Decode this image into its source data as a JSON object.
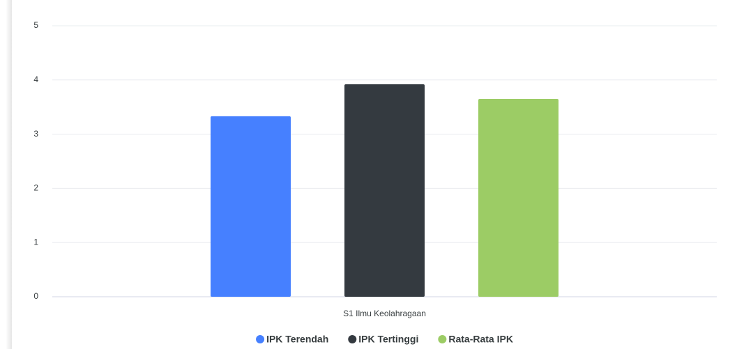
{
  "chart_data": {
    "type": "bar",
    "categories": [
      "S1 Ilmu Keolahragaan"
    ],
    "series": [
      {
        "name": "IPK Terendah",
        "color": "#4680ff",
        "values": [
          3.33
        ]
      },
      {
        "name": "IPK Tertinggi",
        "color": "#343a40",
        "values": [
          3.92
        ]
      },
      {
        "name": "Rata-Rata IPK",
        "color": "#9ccc65",
        "values": [
          3.65
        ]
      }
    ],
    "ylim": [
      0,
      5
    ],
    "yticks": [
      0,
      1,
      2,
      3,
      4,
      5
    ],
    "grid": true,
    "legend": "bottom"
  }
}
